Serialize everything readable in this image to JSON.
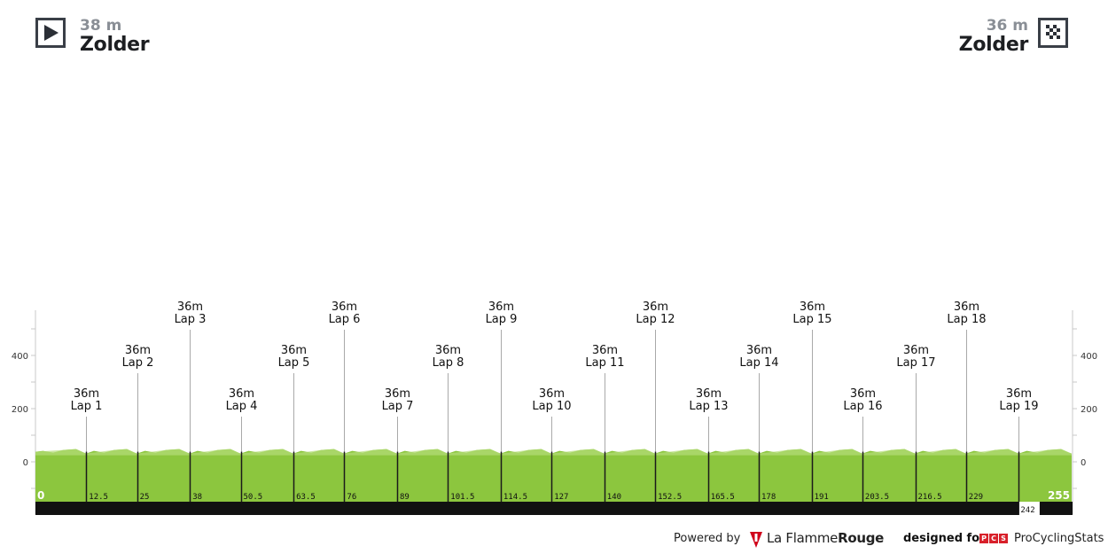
{
  "start": {
    "elevation": "38 m",
    "name": "Zolder",
    "icon": "play-icon"
  },
  "finish": {
    "elevation": "36 m",
    "name": "Zolder",
    "icon": "checkered-flag-icon"
  },
  "chart_data": {
    "type": "area",
    "y_ticks": [
      0,
      200,
      400
    ],
    "ylim": [
      -150,
      550
    ],
    "x_range": [
      0,
      255
    ],
    "profile_elevation": 38,
    "laps": [
      {
        "km": 12.5,
        "name": "Lap 1",
        "elev": "36m"
      },
      {
        "km": 25,
        "name": "Lap 2",
        "elev": "36m"
      },
      {
        "km": 38,
        "name": "Lap 3",
        "elev": "36m"
      },
      {
        "km": 50.5,
        "name": "Lap 4",
        "elev": "36m"
      },
      {
        "km": 63.5,
        "name": "Lap 5",
        "elev": "36m"
      },
      {
        "km": 76,
        "name": "Lap 6",
        "elev": "36m"
      },
      {
        "km": 89,
        "name": "Lap 7",
        "elev": "36m"
      },
      {
        "km": 101.5,
        "name": "Lap 8",
        "elev": "36m"
      },
      {
        "km": 114.5,
        "name": "Lap 9",
        "elev": "36m"
      },
      {
        "km": 127,
        "name": "Lap 10",
        "elev": "36m"
      },
      {
        "km": 140,
        "name": "Lap 11",
        "elev": "36m"
      },
      {
        "km": 152.5,
        "name": "Lap 12",
        "elev": "36m"
      },
      {
        "km": 165.5,
        "name": "Lap 13",
        "elev": "36m"
      },
      {
        "km": 178,
        "name": "Lap 14",
        "elev": "36m"
      },
      {
        "km": 191,
        "name": "Lap 15",
        "elev": "36m"
      },
      {
        "km": 203.5,
        "name": "Lap 16",
        "elev": "36m"
      },
      {
        "km": 216.5,
        "name": "Lap 17",
        "elev": "36m"
      },
      {
        "km": 229,
        "name": "Lap 18",
        "elev": "36m"
      },
      {
        "km": 242,
        "name": "Lap 19",
        "elev": "36m"
      }
    ],
    "km_labels": [
      "0",
      "12.5",
      "25",
      "38",
      "50.5",
      "63.5",
      "76",
      "89",
      "101.5",
      "114.5",
      "127",
      "140",
      "152.5",
      "165.5",
      "178",
      "191",
      "203.5",
      "216.5",
      "229",
      "242",
      "255"
    ],
    "colors": {
      "profile": "#8cc63e",
      "profile_light": "#b5dd7a",
      "bar": "#111111",
      "line": "#b0b0b0"
    }
  },
  "footer": {
    "powered_by": "Powered by",
    "brand_1": "La Flamme",
    "brand_2": "Rouge",
    "designed_for": "designed for",
    "pcs": "PCS",
    "pcs_name": "ProCyclingStats"
  }
}
